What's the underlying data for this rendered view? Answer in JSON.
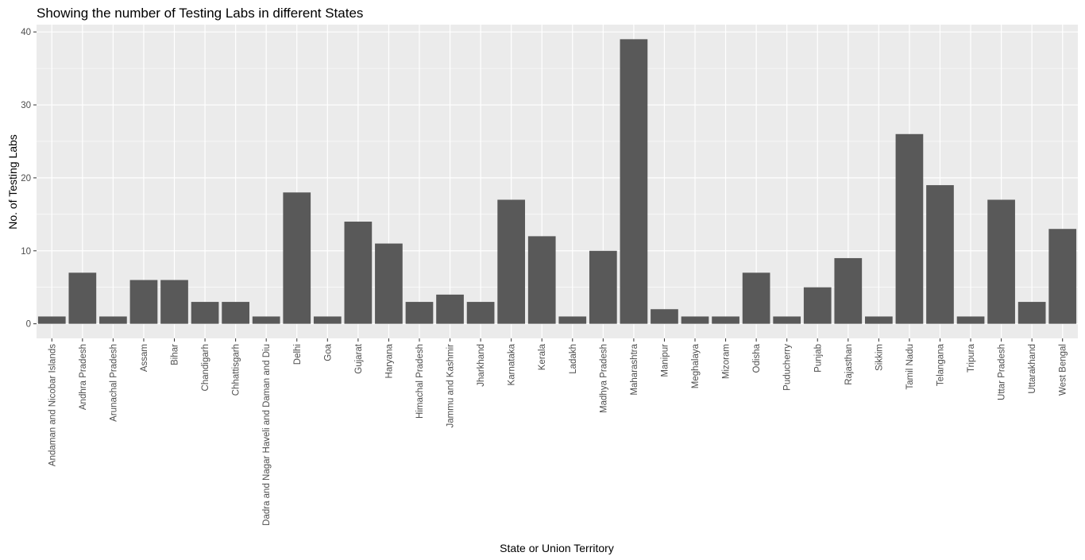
{
  "chart_data": {
    "type": "bar",
    "title": "Showing the number of Testing Labs in different States",
    "xlabel": "State or Union Territory",
    "ylabel": "No. of Testing Labs",
    "ylim": [
      -2,
      41
    ],
    "yticks": [
      0,
      10,
      20,
      30,
      40
    ],
    "grid": true,
    "legend": "none",
    "colors": {
      "bar": "#595959",
      "panel": "#ebebeb",
      "grid": "#ffffff",
      "tick_text": "#4d4d4d"
    },
    "categories": [
      "Andaman and Nicobar Islands",
      "Andhra Pradesh",
      "Arunachal Pradesh",
      "Assam",
      "Bihar",
      "Chandigarh",
      "Chhattisgarh",
      "Dadra and Nagar Haveli and Daman and Diu",
      "Delhi",
      "Goa",
      "Gujarat",
      "Haryana",
      "Himachal Pradesh",
      "Jammu and Kashmir",
      "Jharkhand",
      "Karnataka",
      "Kerala",
      "Ladakh",
      "Madhya Pradesh",
      "Maharashtra",
      "Manipur",
      "Meghalaya",
      "Mizoram",
      "Odisha",
      "Puducherry",
      "Punjab",
      "Rajasthan",
      "Sikkim",
      "Tamil Nadu",
      "Telangana",
      "Tripura",
      "Uttar Pradesh",
      "Uttarakhand",
      "West Bengal"
    ],
    "values": [
      1,
      7,
      1,
      6,
      6,
      3,
      3,
      1,
      18,
      1,
      14,
      11,
      3,
      4,
      3,
      17,
      12,
      1,
      10,
      39,
      2,
      1,
      1,
      7,
      1,
      5,
      9,
      1,
      26,
      19,
      1,
      17,
      3,
      13
    ]
  }
}
